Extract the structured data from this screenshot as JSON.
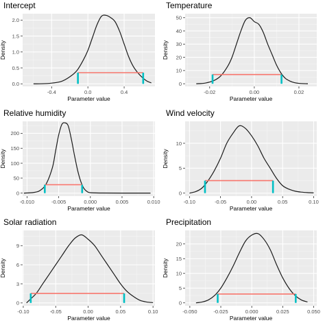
{
  "chart_data": [
    {
      "type": "area",
      "title": "Intercept",
      "xlabel": "Parameter value",
      "ylabel": "Density",
      "xlim": [
        -0.72,
        0.74
      ],
      "ylim": [
        -0.08,
        2.2
      ],
      "xticks": [
        -0.4,
        0.0,
        0.4
      ],
      "xtick_labels": [
        "-0.4",
        "0.0",
        "0.4"
      ],
      "yticks": [
        0.0,
        0.5,
        1.0,
        1.5,
        2.0
      ],
      "ytick_labels": [
        "0.0",
        "0.5",
        "1.0",
        "1.5",
        "2.0"
      ],
      "grid": true,
      "density": {
        "x": [
          -0.6,
          -0.45,
          -0.3,
          -0.2,
          -0.12,
          -0.05,
          0.0,
          0.05,
          0.1,
          0.15,
          0.2,
          0.25,
          0.3,
          0.35,
          0.4,
          0.45,
          0.5,
          0.55,
          0.6,
          0.65,
          0.7
        ],
        "y": [
          0.0,
          0.01,
          0.07,
          0.22,
          0.42,
          0.75,
          1.05,
          1.45,
          1.85,
          2.12,
          2.15,
          2.08,
          1.95,
          1.65,
          1.25,
          0.85,
          0.55,
          0.35,
          0.2,
          0.09,
          0.03
        ]
      },
      "interval": {
        "lower": -0.11,
        "upper": 0.61,
        "height": 0.35
      }
    },
    {
      "type": "area",
      "title": "Temperature",
      "xlabel": "Parameter value",
      "ylabel": "Density",
      "xlim": [
        -0.031,
        0.028
      ],
      "ylim": [
        -2,
        53
      ],
      "xticks": [
        -0.02,
        0.0,
        0.02
      ],
      "xtick_labels": [
        "-0.02",
        "0.00",
        "0.02"
      ],
      "yticks": [
        0,
        10,
        20,
        30,
        40,
        50
      ],
      "ytick_labels": [
        "0",
        "10",
        "20",
        "30",
        "40",
        "50"
      ],
      "grid": true,
      "density": {
        "x": [
          -0.026,
          -0.022,
          -0.018,
          -0.015,
          -0.012,
          -0.01,
          -0.008,
          -0.006,
          -0.004,
          -0.002,
          0.0,
          0.002,
          0.004,
          0.006,
          0.008,
          0.01,
          0.012,
          0.014,
          0.016,
          0.018,
          0.02,
          0.024
        ],
        "y": [
          0.0,
          0.5,
          2.5,
          6.0,
          13.0,
          20.0,
          30.0,
          40.0,
          48.0,
          50.0,
          47.0,
          45.0,
          39.0,
          30.0,
          22.0,
          14.0,
          8.0,
          4.0,
          2.0,
          0.8,
          0.3,
          0.0
        ]
      },
      "interval": {
        "lower": -0.0187,
        "upper": 0.0122,
        "height": 7.0
      }
    },
    {
      "type": "area",
      "title": "Relative humidity",
      "xlabel": "Parameter value",
      "ylabel": "Density",
      "xlim": [
        -0.0107,
        0.0102
      ],
      "ylim": [
        -10,
        240
      ],
      "xticks": [
        -0.01,
        -0.005,
        0.0,
        0.005,
        0.01
      ],
      "xtick_labels": [
        "-0.010",
        "-0.005",
        "0.000",
        "0.005",
        "0.010"
      ],
      "yticks": [
        0,
        50,
        100,
        150,
        200
      ],
      "ytick_labels": [
        "0",
        "50",
        "100",
        "150",
        "200"
      ],
      "grid": true,
      "density": {
        "x": [
          -0.0105,
          -0.009,
          -0.008,
          -0.007,
          -0.006,
          -0.0055,
          -0.005,
          -0.0045,
          -0.004,
          -0.0035,
          -0.003,
          -0.0025,
          -0.002,
          -0.0015,
          -0.001,
          -0.0005,
          0.0,
          0.002,
          0.005,
          0.0095
        ],
        "y": [
          0.0,
          2.0,
          8.0,
          30.0,
          85.0,
          140.0,
          195.0,
          230.0,
          235.0,
          225.0,
          180.0,
          125.0,
          75.0,
          38.0,
          15.0,
          5.0,
          1.5,
          0.3,
          0.0,
          0.0
        ]
      },
      "interval": {
        "lower": -0.0072,
        "upper": -0.0013,
        "height": 28.0
      }
    },
    {
      "type": "area",
      "title": "Wind velocity",
      "xlabel": "Parameter value",
      "ylabel": "Density",
      "xlim": [
        -0.107,
        0.105
      ],
      "ylim": [
        -0.6,
        14.4
      ],
      "xticks": [
        -0.1,
        -0.05,
        0.0,
        0.05,
        0.1
      ],
      "xtick_labels": [
        "-0.10",
        "-0.05",
        "0.00",
        "0.05",
        "0.10"
      ],
      "yticks": [
        0,
        5,
        10
      ],
      "ytick_labels": [
        "0",
        "5",
        "10"
      ],
      "grid": true,
      "density": {
        "x": [
          -0.1,
          -0.09,
          -0.08,
          -0.07,
          -0.06,
          -0.05,
          -0.04,
          -0.03,
          -0.02,
          -0.01,
          0.0,
          0.01,
          0.02,
          0.03,
          0.04,
          0.05,
          0.06,
          0.07,
          0.08,
          0.09,
          0.1
        ],
        "y": [
          0.0,
          0.3,
          1.0,
          2.5,
          4.5,
          7.0,
          10.0,
          12.0,
          13.5,
          13.0,
          11.5,
          9.5,
          7.0,
          5.0,
          3.0,
          1.5,
          0.8,
          0.4,
          0.2,
          0.1,
          0.05
        ]
      },
      "interval": {
        "lower": -0.075,
        "upper": 0.0345,
        "height": 2.5
      }
    },
    {
      "type": "area",
      "title": "Solar radiation",
      "xlabel": "Parameter value",
      "ylabel": "Density",
      "xlim": [
        -0.101,
        0.103
      ],
      "ylim": [
        -0.45,
        11.4
      ],
      "xticks": [
        -0.1,
        -0.05,
        0.0,
        0.05,
        0.1
      ],
      "xtick_labels": [
        "-0.10",
        "-0.05",
        "0.00",
        "0.05",
        "0.10"
      ],
      "yticks": [
        0,
        3,
        6,
        9
      ],
      "ytick_labels": [
        "0",
        "3",
        "6",
        "9"
      ],
      "grid": true,
      "density": {
        "x": [
          -0.095,
          -0.09,
          -0.08,
          -0.07,
          -0.06,
          -0.05,
          -0.04,
          -0.03,
          -0.02,
          -0.01,
          0.0,
          0.01,
          0.02,
          0.03,
          0.04,
          0.05,
          0.06,
          0.07,
          0.08,
          0.09,
          0.1
        ],
        "y": [
          0.0,
          0.5,
          1.5,
          3.0,
          4.5,
          6.0,
          7.5,
          9.0,
          10.2,
          10.7,
          10.0,
          9.0,
          7.5,
          6.0,
          4.5,
          3.0,
          1.8,
          1.0,
          0.4,
          0.15,
          0.05
        ]
      },
      "interval": {
        "lower": -0.0885,
        "upper": 0.0555,
        "height": 1.5
      }
    },
    {
      "type": "area",
      "title": "Precipitation",
      "xlabel": "Parameter value",
      "ylabel": "Density",
      "xlim": [
        -0.0538,
        0.0525
      ],
      "ylim": [
        -1,
        24.6
      ],
      "xticks": [
        -0.05,
        -0.025,
        0.0,
        0.025,
        0.05
      ],
      "xtick_labels": [
        "-0.050",
        "-0.025",
        "0.000",
        "0.025",
        "0.050"
      ],
      "yticks": [
        0,
        5,
        10,
        15,
        20
      ],
      "ytick_labels": [
        "0",
        "5",
        "10",
        "15",
        "20"
      ],
      "grid": true,
      "density": {
        "x": [
          -0.045,
          -0.04,
          -0.035,
          -0.03,
          -0.025,
          -0.02,
          -0.015,
          -0.01,
          -0.005,
          0.0,
          0.005,
          0.01,
          0.015,
          0.02,
          0.025,
          0.03,
          0.035,
          0.04,
          0.045
        ],
        "y": [
          0.0,
          0.3,
          1.0,
          2.5,
          5.0,
          8.5,
          12.5,
          17.0,
          21.0,
          23.0,
          23.5,
          21.5,
          18.0,
          13.0,
          8.5,
          5.0,
          2.5,
          1.0,
          0.3
        ]
      },
      "interval": {
        "lower": -0.0275,
        "upper": 0.0355,
        "height": 3.0
      }
    }
  ]
}
